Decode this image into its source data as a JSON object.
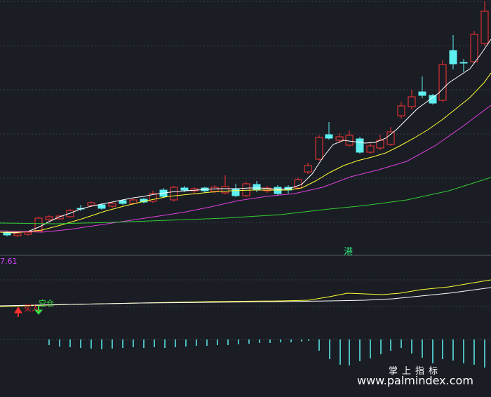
{
  "main_chart": {
    "market_badge": "港",
    "colors": {
      "up": "#ff3333",
      "down": "#5ef0f0",
      "ma5": "#ffffff",
      "ma10": "#ffff33",
      "ma20": "#e040e0",
      "ma60": "#33cc33"
    }
  },
  "indicator": {
    "value_text": "7.61",
    "buy_signal": "买入",
    "sell_signal": "空仓",
    "colors": {
      "fast": "#ffff33",
      "slow": "#ffffff",
      "bars": "#5ef0f0"
    }
  },
  "watermark": {
    "cn": "掌上指标",
    "url": "www.palmindex.com"
  }
}
